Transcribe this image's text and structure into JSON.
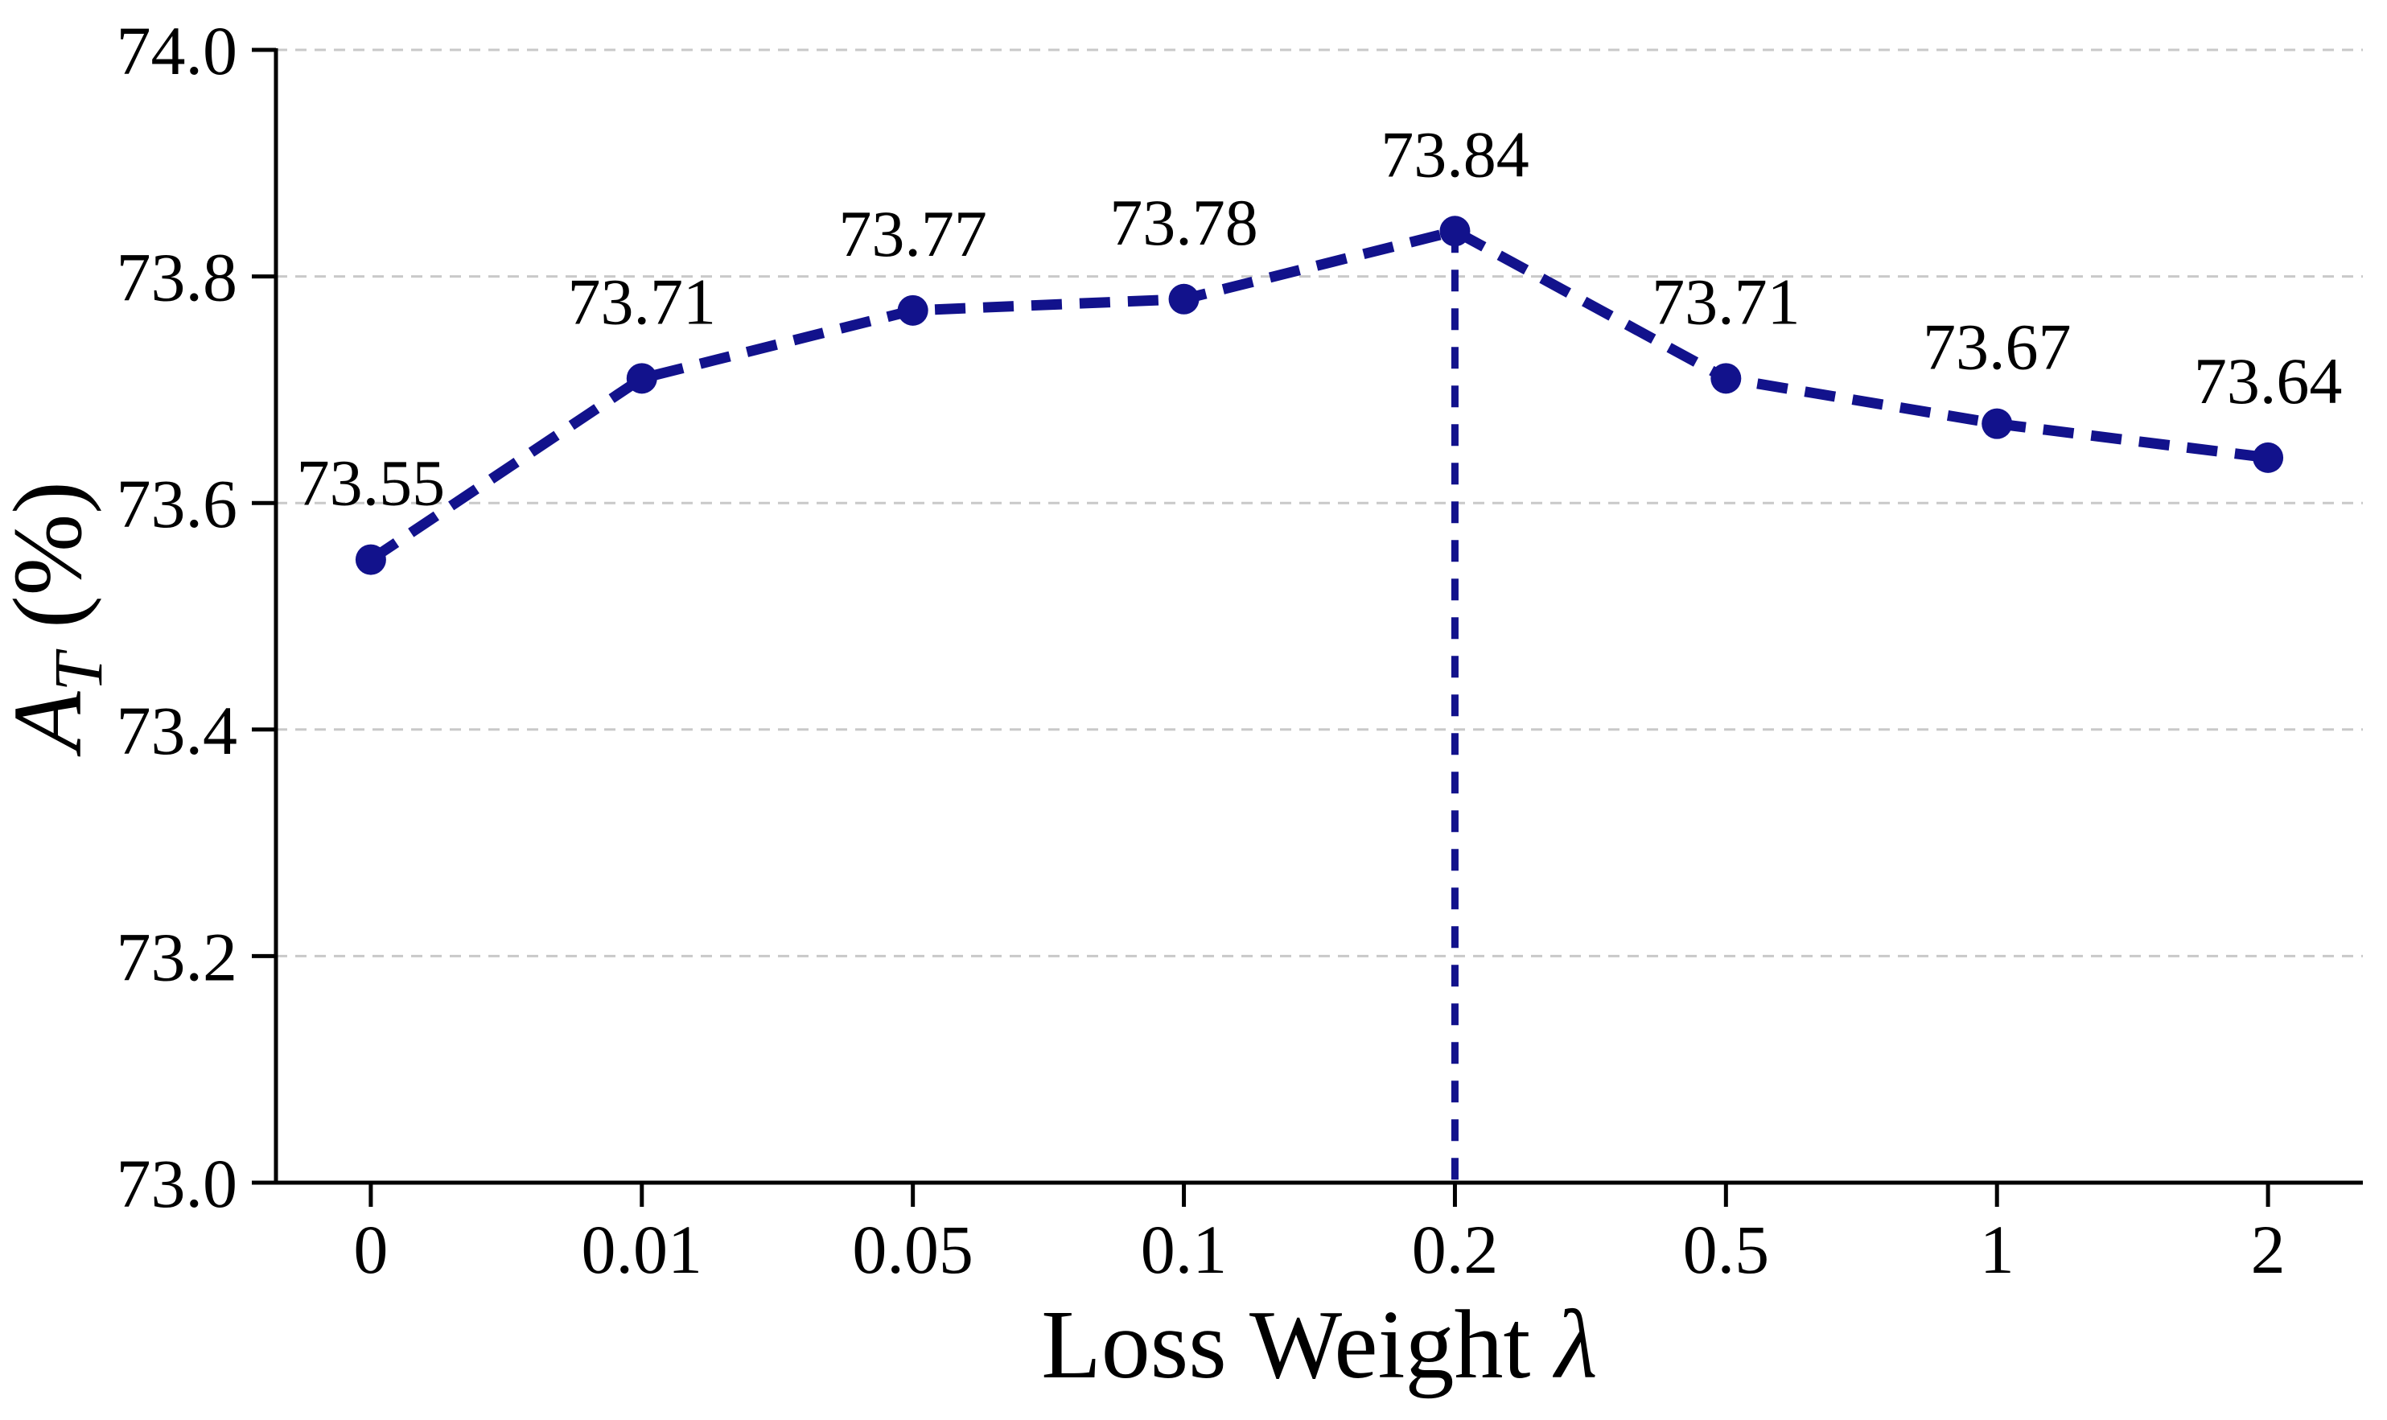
{
  "figure": {
    "background": "#ffffff"
  },
  "chart_data": {
    "type": "line",
    "title": "",
    "xlabel": "Loss Weight λ",
    "xlabel_main": "Loss Weight ",
    "xlabel_symbol": "λ",
    "ylabel": "A_T (%)",
    "ylabel_letter": "A",
    "ylabel_subscript": "T",
    "ylabel_unit": " (%)",
    "categories": [
      "0",
      "0.01",
      "0.05",
      "0.1",
      "0.2",
      "0.5",
      "1",
      "2"
    ],
    "values": [
      73.55,
      73.71,
      73.77,
      73.78,
      73.84,
      73.71,
      73.67,
      73.64
    ],
    "point_labels": [
      "73.55",
      "73.71",
      "73.77",
      "73.78",
      "73.84",
      "73.71",
      "73.67",
      "73.64"
    ],
    "yticks": [
      "73.0",
      "73.2",
      "73.4",
      "73.6",
      "73.8",
      "74.0"
    ],
    "ylim": [
      73.0,
      74.0
    ],
    "grid": true,
    "legend_position": "none",
    "line_style": "dashed",
    "marker": "circle",
    "vline_category": "0.2",
    "colors": {
      "line": "#12128c",
      "marker": "#12128c",
      "vline": "#12128c",
      "grid": "#c9c9c9",
      "axis": "#000000",
      "text": "#000000",
      "background": "#ffffff"
    }
  }
}
